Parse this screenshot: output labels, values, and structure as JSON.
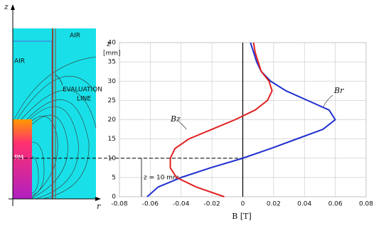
{
  "chart_data": {
    "type": "line",
    "y_label": "z",
    "y_unit": "[mm]",
    "x_label": "B  [T]",
    "xlim": [
      -0.08,
      0.08
    ],
    "xticks": [
      -0.08,
      -0.06,
      -0.04,
      -0.02,
      0,
      0.02,
      0.04,
      0.06,
      0.08
    ],
    "ylim": [
      0,
      40
    ],
    "yticks": [
      0,
      5,
      10,
      15,
      20,
      25,
      30,
      35,
      40
    ],
    "grid": true,
    "y": [
      0,
      2.5,
      5,
      7.5,
      10,
      12.5,
      15,
      17.5,
      20,
      22.5,
      25,
      27.5,
      30,
      32.5,
      35,
      37.5,
      40
    ],
    "series": [
      {
        "name": "Br",
        "color": "#1f2fd0",
        "values": [
          -0.062,
          -0.055,
          -0.04,
          -0.021,
          0.0,
          0.018,
          0.035,
          0.052,
          0.06,
          0.056,
          0.042,
          0.028,
          0.018,
          0.012,
          0.009,
          0.007,
          0.005
        ]
      },
      {
        "name": "Bz",
        "color": "#e02020",
        "values": [
          -0.012,
          -0.03,
          -0.043,
          -0.047,
          -0.047,
          -0.044,
          -0.035,
          -0.02,
          -0.005,
          0.008,
          0.016,
          0.019,
          0.017,
          0.012,
          0.01,
          0.008,
          0.007
        ]
      }
    ],
    "reference_z": 10,
    "reference_label": "z = 10 mm"
  },
  "field_plot": {
    "axis_z": "z",
    "axis_r": "r",
    "air_left": "AIR",
    "air_right": "AIR",
    "evaluation_line_label": [
      "EVALUATION",
      "LINE"
    ],
    "magnet": "PM"
  }
}
